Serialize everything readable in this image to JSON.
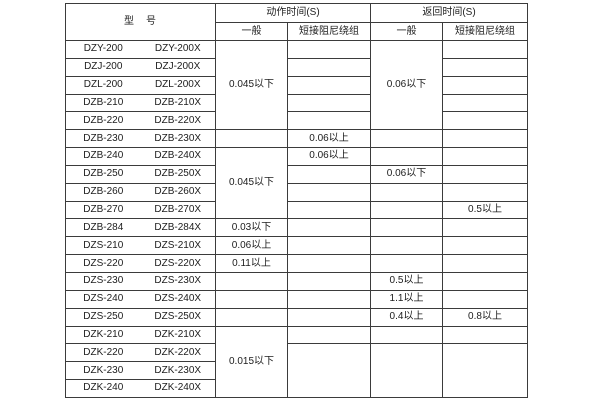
{
  "colors": {
    "background": "#ffffff",
    "border": "#3b3b3b",
    "text": "#1c1c1c"
  },
  "table": {
    "header": {
      "model_label": "型　号",
      "action_time_label": "动作时间(S)",
      "return_time_label": "返回时间(S)",
      "general_label": "一般",
      "damping_label": "短接阻尼绕组"
    },
    "columns": [
      "型号",
      "动作时间(S)-一般",
      "动作时间(S)-短接阻尼绕组",
      "返回时间(S)-一般",
      "返回时间(S)-短接阻尼绕组"
    ],
    "rows": [
      {
        "models": [
          "DZY-200",
          "DZY-200X"
        ],
        "cells": [
          {
            "text": "0.045以下",
            "rowspan": 5
          },
          {
            "text": "",
            "rowspan": 1
          },
          {
            "text": "0.06以下",
            "rowspan": 5
          },
          {
            "text": "",
            "rowspan": 1
          }
        ]
      },
      {
        "models": [
          "DZJ-200",
          "DZJ-200X"
        ],
        "cells": [
          {
            "text": "",
            "rowspan": 1
          },
          {
            "text": "",
            "rowspan": 1
          }
        ]
      },
      {
        "models": [
          "DZL-200",
          "DZL-200X"
        ],
        "cells": [
          {
            "text": "",
            "rowspan": 1
          },
          {
            "text": "",
            "rowspan": 1
          }
        ]
      },
      {
        "models": [
          "DZB-210",
          "DZB-210X"
        ],
        "cells": [
          {
            "text": "",
            "rowspan": 1
          },
          {
            "text": "",
            "rowspan": 1
          }
        ]
      },
      {
        "models": [
          "DZB-220",
          "DZB-220X"
        ],
        "cells": [
          {
            "text": "",
            "rowspan": 1
          },
          {
            "text": "",
            "rowspan": 1
          }
        ]
      },
      {
        "models": [
          "DZB-230",
          "DZB-230X"
        ],
        "cells": [
          {
            "text": "",
            "rowspan": 1
          },
          {
            "text": "0.06以上",
            "rowspan": 1
          },
          {
            "text": "",
            "rowspan": 1
          },
          {
            "text": "",
            "rowspan": 1
          }
        ]
      },
      {
        "models": [
          "DZB-240",
          "DZB-240X"
        ],
        "cells": [
          {
            "text": "0.045以下",
            "rowspan": 4
          },
          {
            "text": "0.06以上",
            "rowspan": 1
          },
          {
            "text": "",
            "rowspan": 1
          },
          {
            "text": "",
            "rowspan": 1
          }
        ]
      },
      {
        "models": [
          "DZB-250",
          "DZB-250X"
        ],
        "cells": [
          {
            "text": "",
            "rowspan": 1
          },
          {
            "text": "0.06以下",
            "rowspan": 1
          },
          {
            "text": "",
            "rowspan": 1
          }
        ]
      },
      {
        "models": [
          "DZB-260",
          "DZB-260X"
        ],
        "cells": [
          {
            "text": "",
            "rowspan": 1
          },
          {
            "text": "",
            "rowspan": 1
          },
          {
            "text": "",
            "rowspan": 1
          }
        ]
      },
      {
        "models": [
          "DZB-270",
          "DZB-270X"
        ],
        "cells": [
          {
            "text": "",
            "rowspan": 1
          },
          {
            "text": "",
            "rowspan": 1
          },
          {
            "text": "0.5以上",
            "rowspan": 1
          }
        ]
      },
      {
        "models": [
          "DZB-284",
          "DZB-284X"
        ],
        "cells": [
          {
            "text": "0.03以下",
            "rowspan": 1
          },
          {
            "text": "",
            "rowspan": 1
          },
          {
            "text": "",
            "rowspan": 1
          },
          {
            "text": "",
            "rowspan": 1
          }
        ]
      },
      {
        "models": [
          "DZS-210",
          "DZS-210X"
        ],
        "cells": [
          {
            "text": "0.06以上",
            "rowspan": 1
          },
          {
            "text": "",
            "rowspan": 1
          },
          {
            "text": "",
            "rowspan": 1
          },
          {
            "text": "",
            "rowspan": 1
          }
        ]
      },
      {
        "models": [
          "DZS-220",
          "DZS-220X"
        ],
        "cells": [
          {
            "text": "0.11以上",
            "rowspan": 1
          },
          {
            "text": "",
            "rowspan": 1
          },
          {
            "text": "",
            "rowspan": 1
          },
          {
            "text": "",
            "rowspan": 1
          }
        ]
      },
      {
        "models": [
          "DZS-230",
          "DZS-230X"
        ],
        "cells": [
          {
            "text": "",
            "rowspan": 1
          },
          {
            "text": "",
            "rowspan": 1
          },
          {
            "text": "0.5以上",
            "rowspan": 1
          },
          {
            "text": "",
            "rowspan": 1
          }
        ]
      },
      {
        "models": [
          "DZS-240",
          "DZS-240X"
        ],
        "cells": [
          {
            "text": "",
            "rowspan": 1
          },
          {
            "text": "",
            "rowspan": 1
          },
          {
            "text": "1.1以上",
            "rowspan": 1
          },
          {
            "text": "",
            "rowspan": 1
          }
        ]
      },
      {
        "models": [
          "DZS-250",
          "DZS-250X"
        ],
        "cells": [
          {
            "text": "",
            "rowspan": 1
          },
          {
            "text": "",
            "rowspan": 1
          },
          {
            "text": "0.4以上",
            "rowspan": 1
          },
          {
            "text": "0.8以上",
            "rowspan": 1
          }
        ]
      },
      {
        "models": [
          "DZK-210",
          "DZK-210X"
        ],
        "cells": [
          {
            "text": "0.015以下",
            "rowspan": 4
          },
          {
            "text": "",
            "rowspan": 1
          },
          {
            "text": "",
            "rowspan": 1
          },
          {
            "text": "",
            "rowspan": 1
          }
        ]
      },
      {
        "models": [
          "DZK-220",
          "DZK-220X"
        ],
        "cells": [
          {
            "text": "",
            "rowspan": 3
          },
          {
            "text": "",
            "rowspan": 3
          },
          {
            "text": "",
            "rowspan": 3
          }
        ]
      },
      {
        "models": [
          "DZK-230",
          "DZK-230X"
        ],
        "cells": []
      },
      {
        "models": [
          "DZK-240",
          "DZK-240X"
        ],
        "cells": []
      }
    ]
  }
}
